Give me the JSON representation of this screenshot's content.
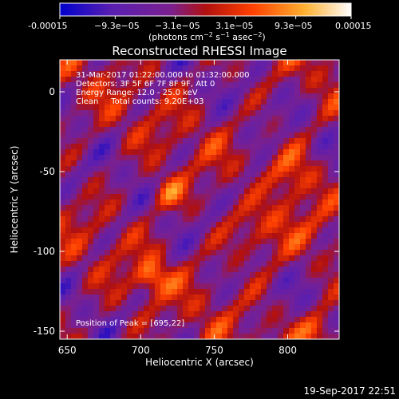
{
  "colorbar": {
    "ticks": [
      "-0.00015",
      "−9.3e−05",
      "−3.1e−05",
      "3.1e−05",
      "9.3e−05",
      "0.00015"
    ],
    "tick_values": [
      -0.00015,
      -9.3e-05,
      -3.1e-05,
      3.1e-05,
      9.3e-05,
      0.00015
    ],
    "range": [
      -0.00015,
      0.00015
    ],
    "colors": [
      "#0000cc",
      "#5a1fb0",
      "#7a2090",
      "#b01010",
      "#ff4000",
      "#ffb030",
      "#ffffff"
    ],
    "units_prefix": "(photons cm",
    "units_sup1": "−2",
    "units_mid": " s",
    "units_sup2": "−1",
    "units_after": " asec",
    "units_sup3": "−2",
    "units_suffix": ")"
  },
  "chart_data": {
    "type": "heatmap",
    "title": "Reconstructed RHESSI Image",
    "xlabel": "Heliocentric X (arcsec)",
    "ylabel": "Heliocentric Y (arcsec)",
    "xlim": [
      645,
      835
    ],
    "ylim": [
      -155,
      20
    ],
    "x_ticks": [
      650,
      700,
      750,
      800
    ],
    "y_ticks": [
      0,
      -50,
      -100,
      -150
    ],
    "peak": [
      695,
      22
    ],
    "annotations": [
      "31-Mar-2017 01:22:00.000 to 01:32:00.000",
      "Detectors: 3F 5F 6F 7F 8F 9F, Att 0",
      "Energy Range: 12.0 - 25.0 keV",
      "Clean     Total counts: 9.20E+03"
    ],
    "peak_label": "Position of Peak = [695,22]"
  },
  "footer": {
    "timestamp": "19-Sep-2017 22:51"
  }
}
